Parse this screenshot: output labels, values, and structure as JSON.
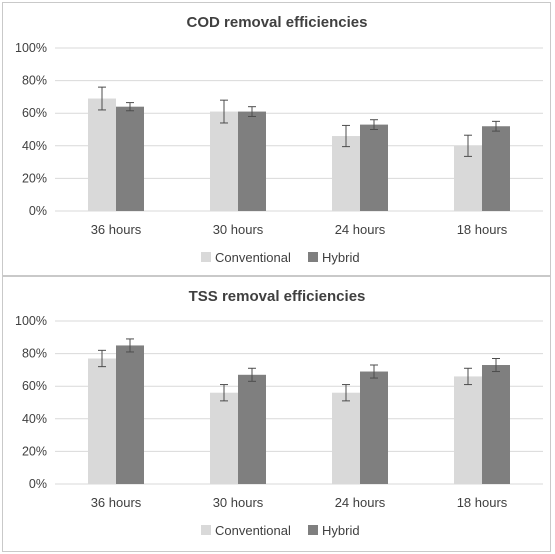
{
  "colors": {
    "conventional": "#d9d9d9",
    "hybrid": "#7f7f7f",
    "errorbar": "#4d4d4d",
    "grid": "#d9d9d9",
    "text": "#404040"
  },
  "chart_data": [
    {
      "type": "bar",
      "title": "COD removal efficiencies",
      "categories": [
        "36 hours",
        "30 hours",
        "24 hours",
        "18 hours"
      ],
      "yticks": [
        "0%",
        "20%",
        "40%",
        "60%",
        "80%",
        "100%"
      ],
      "ylim": [
        0,
        100
      ],
      "grid": true,
      "legend_position": "bottom",
      "series": [
        {
          "name": "Conventional",
          "values": [
            69,
            61,
            46,
            40
          ],
          "errors": [
            7,
            7,
            6.5,
            6.5
          ]
        },
        {
          "name": "Hybrid",
          "values": [
            64,
            61,
            53,
            52
          ],
          "errors": [
            2.5,
            3,
            3,
            3
          ]
        }
      ]
    },
    {
      "type": "bar",
      "title": "TSS removal efficiencies",
      "categories": [
        "36 hours",
        "30 hours",
        "24 hours",
        "18 hours"
      ],
      "yticks": [
        "0%",
        "20%",
        "40%",
        "60%",
        "80%",
        "100%"
      ],
      "ylim": [
        0,
        100
      ],
      "grid": true,
      "legend_position": "bottom",
      "series": [
        {
          "name": "Conventional",
          "values": [
            77,
            56,
            56,
            66
          ],
          "errors": [
            5,
            5,
            5,
            5
          ]
        },
        {
          "name": "Hybrid",
          "values": [
            85,
            67,
            69,
            73
          ],
          "errors": [
            4,
            4,
            4,
            4
          ]
        }
      ]
    }
  ]
}
